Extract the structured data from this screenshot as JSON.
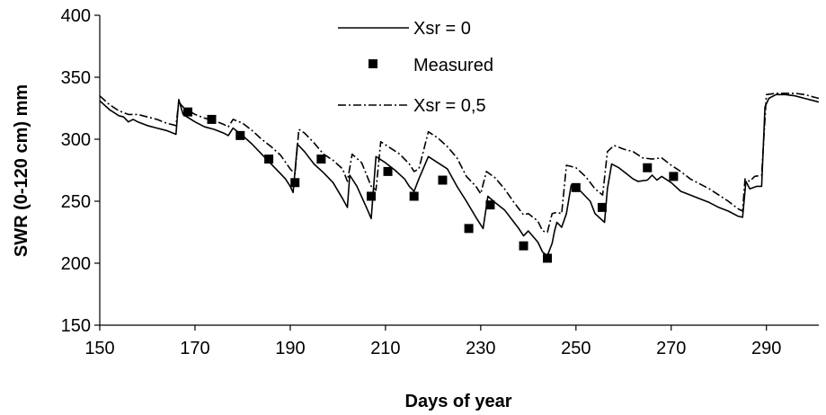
{
  "chart_data": {
    "type": "line",
    "xlabel": "Days of year",
    "ylabel": "SWR (0-120 cm) mm",
    "xlim": [
      150,
      301
    ],
    "ylim": [
      150,
      400
    ],
    "xticks": [
      "150",
      "170",
      "190",
      "210",
      "230",
      "250",
      "270",
      "290"
    ],
    "yticks": [
      "150",
      "200",
      "250",
      "300",
      "350",
      "400"
    ],
    "grid": false,
    "legend_position": "top-center",
    "series": [
      {
        "name": "Xsr = 0",
        "style": "solid",
        "color": "#000000",
        "points": [
          [
            150,
            331
          ],
          [
            152,
            324
          ],
          [
            154,
            319
          ],
          [
            155,
            318
          ],
          [
            156,
            314
          ],
          [
            157,
            316
          ],
          [
            158,
            314
          ],
          [
            160,
            311
          ],
          [
            162,
            309
          ],
          [
            164,
            307
          ],
          [
            166,
            304
          ],
          [
            166.6,
            332
          ],
          [
            167.5,
            320
          ],
          [
            170,
            314
          ],
          [
            172,
            310
          ],
          [
            174,
            308
          ],
          [
            176,
            305
          ],
          [
            177,
            303
          ],
          [
            178,
            309
          ],
          [
            179,
            306
          ],
          [
            180,
            303
          ],
          [
            182,
            296
          ],
          [
            184,
            288
          ],
          [
            186,
            280
          ],
          [
            188,
            272
          ],
          [
            189,
            268
          ],
          [
            190,
            262
          ],
          [
            190.6,
            257
          ],
          [
            191.5,
            296
          ],
          [
            193,
            290
          ],
          [
            195,
            280
          ],
          [
            197,
            273
          ],
          [
            199,
            265
          ],
          [
            201,
            252
          ],
          [
            202,
            245
          ],
          [
            202.5,
            271
          ],
          [
            204,
            262
          ],
          [
            206,
            245
          ],
          [
            207,
            236
          ],
          [
            208,
            286
          ],
          [
            210,
            281
          ],
          [
            211,
            278
          ],
          [
            212,
            275
          ],
          [
            214,
            268
          ],
          [
            215,
            262
          ],
          [
            216,
            258
          ],
          [
            217,
            268
          ],
          [
            219,
            286
          ],
          [
            221,
            281
          ],
          [
            223,
            276
          ],
          [
            225,
            262
          ],
          [
            227,
            250
          ],
          [
            229,
            237
          ],
          [
            230.5,
            228
          ],
          [
            231.5,
            254
          ],
          [
            233,
            249
          ],
          [
            235,
            243
          ],
          [
            237,
            233
          ],
          [
            238,
            228
          ],
          [
            239,
            222
          ],
          [
            240,
            226
          ],
          [
            242,
            217
          ],
          [
            243,
            209
          ],
          [
            244,
            206
          ],
          [
            245,
            216
          ],
          [
            245.5,
            226
          ],
          [
            246,
            233
          ],
          [
            247,
            229
          ],
          [
            248,
            240
          ],
          [
            249,
            263
          ],
          [
            251,
            258
          ],
          [
            253,
            250
          ],
          [
            254,
            240
          ],
          [
            256,
            233
          ],
          [
            256.6,
            260
          ],
          [
            257.5,
            280
          ],
          [
            259,
            277
          ],
          [
            261,
            271
          ],
          [
            262,
            268
          ],
          [
            263,
            266
          ],
          [
            265,
            267
          ],
          [
            266,
            271
          ],
          [
            267,
            267
          ],
          [
            268,
            270
          ],
          [
            270,
            265
          ],
          [
            272,
            258
          ],
          [
            274,
            255
          ],
          [
            276,
            252
          ],
          [
            278,
            249
          ],
          [
            280,
            245
          ],
          [
            282,
            242
          ],
          [
            284,
            238
          ],
          [
            285,
            237
          ],
          [
            285.7,
            266
          ],
          [
            286.5,
            260
          ],
          [
            288,
            262
          ],
          [
            289,
            262
          ],
          [
            289.7,
            326
          ],
          [
            290.5,
            333
          ],
          [
            292,
            336
          ],
          [
            294,
            336
          ],
          [
            296,
            335
          ],
          [
            298,
            333
          ],
          [
            300,
            331
          ],
          [
            301,
            330
          ]
        ]
      },
      {
        "name": "Measured",
        "style": "square-marker",
        "color": "#000000",
        "points": [
          [
            168.5,
            322
          ],
          [
            173.5,
            316
          ],
          [
            179.5,
            303
          ],
          [
            185.5,
            284
          ],
          [
            191,
            265
          ],
          [
            196.5,
            284
          ],
          [
            207,
            254
          ],
          [
            210.5,
            274
          ],
          [
            216,
            254
          ],
          [
            222,
            267
          ],
          [
            227.5,
            228
          ],
          [
            232,
            247
          ],
          [
            239,
            214
          ],
          [
            244,
            204
          ],
          [
            250,
            261
          ],
          [
            255.5,
            245
          ],
          [
            265,
            277
          ],
          [
            270.5,
            270
          ]
        ]
      },
      {
        "name": "Xsr = 0,5",
        "style": "dash-dot",
        "color": "#000000",
        "points": [
          [
            150,
            335
          ],
          [
            152,
            328
          ],
          [
            154,
            323
          ],
          [
            156,
            320
          ],
          [
            158,
            320
          ],
          [
            160,
            318
          ],
          [
            162,
            316
          ],
          [
            164,
            313
          ],
          [
            166,
            311
          ],
          [
            166.6,
            330
          ],
          [
            167.5,
            326
          ],
          [
            170,
            320
          ],
          [
            172,
            317
          ],
          [
            174,
            315
          ],
          [
            176,
            312
          ],
          [
            177,
            310
          ],
          [
            178,
            316
          ],
          [
            180,
            313
          ],
          [
            182,
            307
          ],
          [
            184,
            300
          ],
          [
            186,
            294
          ],
          [
            188,
            287
          ],
          [
            190,
            276
          ],
          [
            191,
            272
          ],
          [
            191.8,
            308
          ],
          [
            193,
            305
          ],
          [
            195,
            297
          ],
          [
            197,
            288
          ],
          [
            199,
            283
          ],
          [
            201,
            276
          ],
          [
            202,
            266
          ],
          [
            203,
            288
          ],
          [
            205,
            281
          ],
          [
            207,
            262
          ],
          [
            208,
            259
          ],
          [
            209,
            298
          ],
          [
            211,
            293
          ],
          [
            213,
            288
          ],
          [
            215,
            280
          ],
          [
            216,
            274
          ],
          [
            217,
            276
          ],
          [
            219,
            306
          ],
          [
            221,
            301
          ],
          [
            223,
            294
          ],
          [
            225,
            285
          ],
          [
            227,
            270
          ],
          [
            229,
            262
          ],
          [
            230,
            256
          ],
          [
            231.2,
            274
          ],
          [
            233,
            269
          ],
          [
            235,
            260
          ],
          [
            237,
            249
          ],
          [
            239,
            239
          ],
          [
            240,
            240
          ],
          [
            242,
            234
          ],
          [
            243,
            226
          ],
          [
            244,
            225
          ],
          [
            245,
            240
          ],
          [
            246,
            241
          ],
          [
            247,
            240
          ],
          [
            248,
            279
          ],
          [
            250,
            277
          ],
          [
            252,
            270
          ],
          [
            254,
            260
          ],
          [
            255.6,
            255
          ],
          [
            256.6,
            290
          ],
          [
            258,
            295
          ],
          [
            260,
            292
          ],
          [
            262,
            290
          ],
          [
            264,
            285
          ],
          [
            266,
            284
          ],
          [
            268,
            285
          ],
          [
            270,
            279
          ],
          [
            272,
            274
          ],
          [
            274,
            268
          ],
          [
            276,
            264
          ],
          [
            278,
            260
          ],
          [
            280,
            255
          ],
          [
            282,
            250
          ],
          [
            284,
            244
          ],
          [
            285,
            242
          ],
          [
            285.5,
            268
          ],
          [
            286.5,
            266
          ],
          [
            287.5,
            270
          ],
          [
            289,
            271
          ],
          [
            290,
            336
          ],
          [
            292,
            337
          ],
          [
            294,
            337
          ],
          [
            296,
            337
          ],
          [
            298,
            336
          ],
          [
            300,
            334
          ],
          [
            301,
            333
          ]
        ]
      }
    ]
  }
}
